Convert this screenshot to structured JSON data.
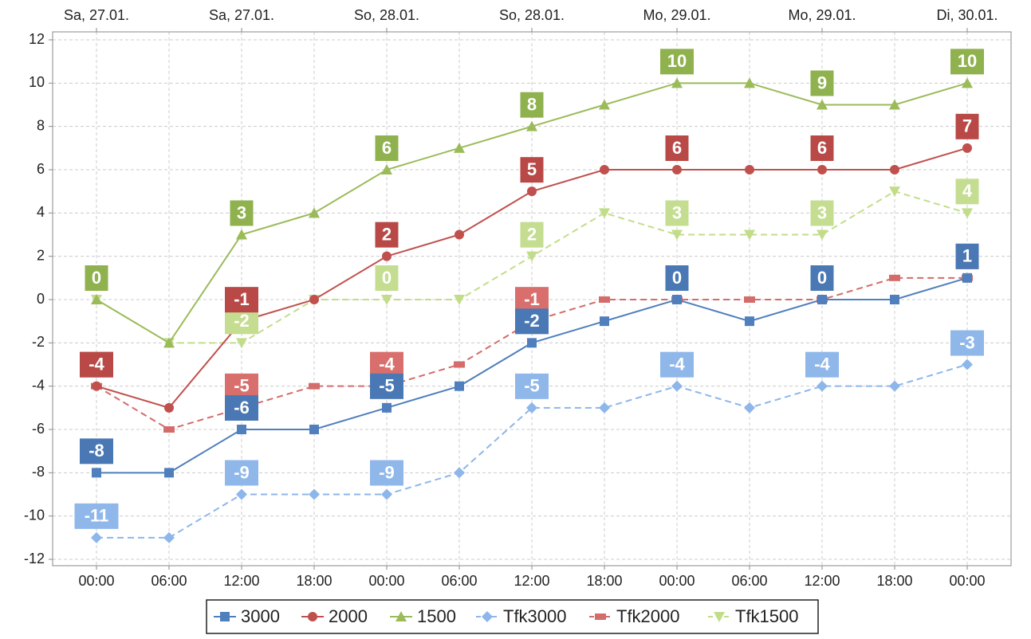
{
  "chart_data": {
    "type": "line",
    "categories": [
      "00:00",
      "06:00",
      "12:00",
      "18:00",
      "00:00",
      "06:00",
      "12:00",
      "18:00",
      "00:00",
      "06:00",
      "12:00",
      "18:00",
      "00:00"
    ],
    "top_categories": [
      "Sa, 27.01.",
      null,
      "Sa, 27.01.",
      null,
      "So, 28.01.",
      null,
      "So, 28.01.",
      null,
      "Mo, 29.01.",
      null,
      "Mo, 29.01.",
      null,
      "Di, 30.01."
    ],
    "ylim": [
      -12,
      12
    ],
    "yticks": [
      -12,
      -10,
      -8,
      -6,
      -4,
      -2,
      0,
      2,
      4,
      6,
      8,
      10,
      12
    ],
    "grid": true,
    "legend": "bottom",
    "series": [
      {
        "name": "3000",
        "color": "#4f7fbd",
        "label_color": "#4a78b4",
        "marker": "square",
        "dashed": false,
        "values": [
          -8,
          -8,
          -6,
          -6,
          -5,
          -4,
          -2,
          -1,
          0,
          -1,
          0,
          0,
          1
        ]
      },
      {
        "name": "2000",
        "color": "#c0504d",
        "label_color": "#b84947",
        "marker": "circle",
        "dashed": false,
        "values": [
          -4,
          -5,
          -1,
          0,
          2,
          3,
          5,
          6,
          6,
          6,
          6,
          6,
          7
        ]
      },
      {
        "name": "1500",
        "color": "#9bbb59",
        "label_color": "#8fb14e",
        "marker": "triangle",
        "dashed": false,
        "values": [
          0,
          -2,
          3,
          4,
          6,
          7,
          8,
          9,
          10,
          10,
          9,
          9,
          10
        ]
      },
      {
        "name": "Tfk3000",
        "color": "#8db6ea",
        "label_color": "#8fb7ea",
        "marker": "diamond",
        "dashed": true,
        "values": [
          -11,
          -11,
          -9,
          -9,
          -9,
          -8,
          -5,
          -5,
          -4,
          -5,
          -4,
          -4,
          -3
        ]
      },
      {
        "name": "Tfk2000",
        "color": "#d36c6a",
        "label_color": "#d86f6d",
        "marker": "dash",
        "dashed": true,
        "values": [
          -4,
          -6,
          -5,
          -4,
          -4,
          -3,
          -1,
          0,
          0,
          0,
          0,
          1,
          1
        ]
      },
      {
        "name": "Tfk1500",
        "color": "#c2dd8a",
        "label_color": "#c4dd90",
        "marker": "triangle-down",
        "dashed": true,
        "values": [
          0,
          -2,
          -2,
          0,
          0,
          0,
          2,
          4,
          3,
          3,
          3,
          5,
          4
        ]
      }
    ]
  }
}
